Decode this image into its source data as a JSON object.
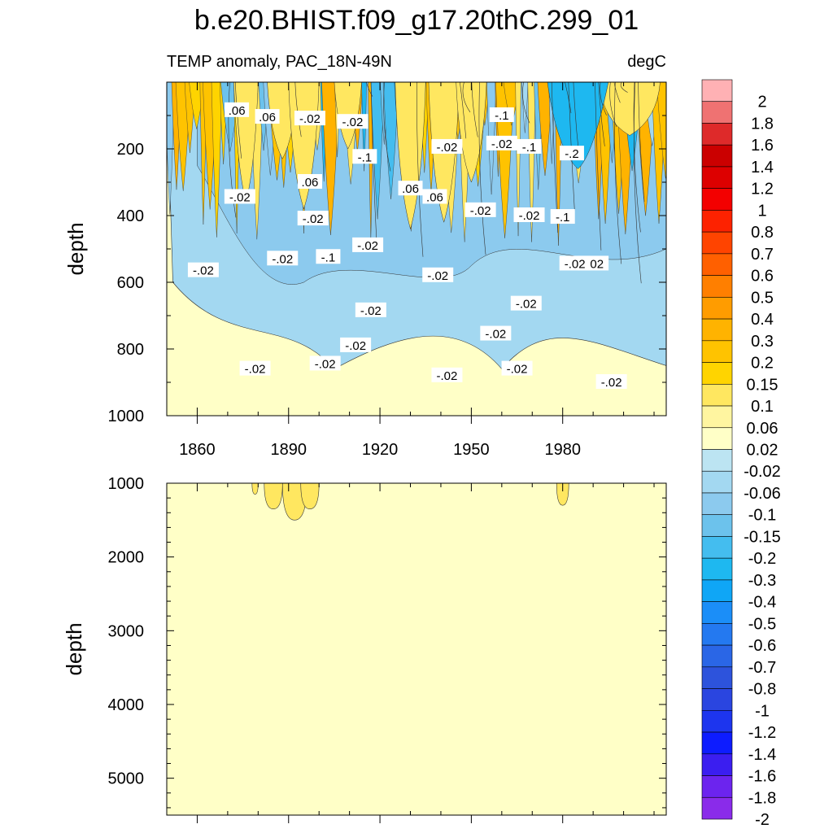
{
  "figure": {
    "title": "b.e20.BHIST.f09_g17.20thC.299_01",
    "subtitle_left": "TEMP anomaly, PAC_18N-49N",
    "subtitle_right": "degC"
  },
  "chart_data": [
    {
      "type": "heatmap",
      "panel": "upper",
      "title": "TEMP anomaly, PAC_18N-49N",
      "units": "degC",
      "xlabel": "",
      "ylabel": "depth",
      "xlim": [
        1850,
        2014
      ],
      "ylim": [
        1000,
        0
      ],
      "x_ticks": [
        "1860",
        "1890",
        "1920",
        "1950",
        "1980"
      ],
      "x_tick_values": [
        1860,
        1890,
        1920,
        1950,
        1980
      ],
      "y_ticks": [
        "200",
        "400",
        "600",
        "800",
        "1000"
      ],
      "y_tick_values": [
        200,
        400,
        600,
        800,
        1000
      ],
      "background_class": "-0.02 to 0.02",
      "contour_labels": [
        {
          "text": ".06",
          "x": 1873,
          "y": 85
        },
        {
          "text": ".06",
          "x": 1883,
          "y": 105
        },
        {
          "text": "-.02",
          "x": 1897,
          "y": 110
        },
        {
          "text": "-.02",
          "x": 1911,
          "y": 120
        },
        {
          "text": "-.1",
          "x": 1915,
          "y": 225
        },
        {
          "text": "-.02",
          "x": 1874,
          "y": 345
        },
        {
          "text": ".06",
          "x": 1897,
          "y": 300
        },
        {
          "text": "-.02",
          "x": 1898,
          "y": 410
        },
        {
          "text": ".06",
          "x": 1930,
          "y": 320
        },
        {
          "text": ".06",
          "x": 1938,
          "y": 345
        },
        {
          "text": "-.02",
          "x": 1942,
          "y": 195
        },
        {
          "text": "-.1",
          "x": 1960,
          "y": 100
        },
        {
          "text": "-.02",
          "x": 1960,
          "y": 185
        },
        {
          "text": "-.1",
          "x": 1969,
          "y": 195
        },
        {
          "text": "-.2",
          "x": 1983,
          "y": 215
        },
        {
          "text": "-.02",
          "x": 1953,
          "y": 385
        },
        {
          "text": "-.02",
          "x": 1969,
          "y": 400
        },
        {
          "text": "-.1",
          "x": 1980,
          "y": 405
        },
        {
          "text": "-.02",
          "x": 1862,
          "y": 565
        },
        {
          "text": "-.02",
          "x": 1888,
          "y": 530
        },
        {
          "text": "-.1",
          "x": 1903,
          "y": 525
        },
        {
          "text": "-.02",
          "x": 1916,
          "y": 490
        },
        {
          "text": "-.02",
          "x": 1939,
          "y": 580
        },
        {
          "text": "-.02",
          "x": 1990,
          "y": 545
        },
        {
          "text": "-.02",
          "x": 1984,
          "y": 545
        },
        {
          "text": "-.02",
          "x": 1917,
          "y": 685
        },
        {
          "text": "-.02",
          "x": 1968,
          "y": 665
        },
        {
          "text": "-.02",
          "x": 1958,
          "y": 755
        },
        {
          "text": "-.02",
          "x": 1912,
          "y": 790
        },
        {
          "text": "-.02",
          "x": 1879,
          "y": 860
        },
        {
          "text": "-.02",
          "x": 1902,
          "y": 845
        },
        {
          "text": "-.02",
          "x": 1942,
          "y": 880
        },
        {
          "text": "-.02",
          "x": 1965,
          "y": 860
        },
        {
          "text": "-.02",
          "x": 1996,
          "y": 900
        }
      ]
    },
    {
      "type": "heatmap",
      "panel": "lower",
      "title": "",
      "xlabel": "",
      "ylabel": "depth",
      "xlim": [
        1850,
        2014
      ],
      "ylim": [
        5500,
        1000
      ],
      "y_ticks": [
        "1000",
        "2000",
        "3000",
        "4000",
        "5000"
      ],
      "y_tick_values": [
        1000,
        2000,
        3000,
        4000,
        5000
      ],
      "background_class": "-0.02 to 0.02",
      "patches_class": "0.02 to 0.06"
    }
  ],
  "colorbar": {
    "labels": [
      "2",
      "1.8",
      "1.6",
      "1.4",
      "1.2",
      "1",
      "0.8",
      "0.7",
      "0.6",
      "0.5",
      "0.4",
      "0.3",
      "0.2",
      "0.15",
      "0.1",
      "0.06",
      "0.02",
      "-0.02",
      "-0.06",
      "-0.1",
      "-0.15",
      "-0.2",
      "-0.3",
      "-0.4",
      "-0.5",
      "-0.6",
      "-0.7",
      "-0.8",
      "-1",
      "-1.2",
      "-1.4",
      "-1.6",
      "-1.8",
      "-2"
    ],
    "colors": [
      "#ffb1b4",
      "#ef7272",
      "#de2a2a",
      "#cb0000",
      "#dd0000",
      "#f30000",
      "#fd2200",
      "#ff4400",
      "#ff6000",
      "#ff7f00",
      "#ff9c00",
      "#ffb300",
      "#ffc300",
      "#ffd400",
      "#ffe760",
      "#fff5a0",
      "#ffffc7",
      "#bce4f2",
      "#a3d8f1",
      "#8ccaee",
      "#6cc2ec",
      "#44bdef",
      "#1eb8f0",
      "#0fa6f6",
      "#1b8ef8",
      "#2479f0",
      "#2a66e6",
      "#2d53dc",
      "#2a45e0",
      "#1d35ee",
      "#0d1cff",
      "#3b1ef0",
      "#6c24ee",
      "#8a2bea"
    ]
  },
  "colors": {
    "warm_anomaly": "#ffe760",
    "cool_anomaly": "#a3d8f1",
    "neutral": "#ffffc7"
  }
}
